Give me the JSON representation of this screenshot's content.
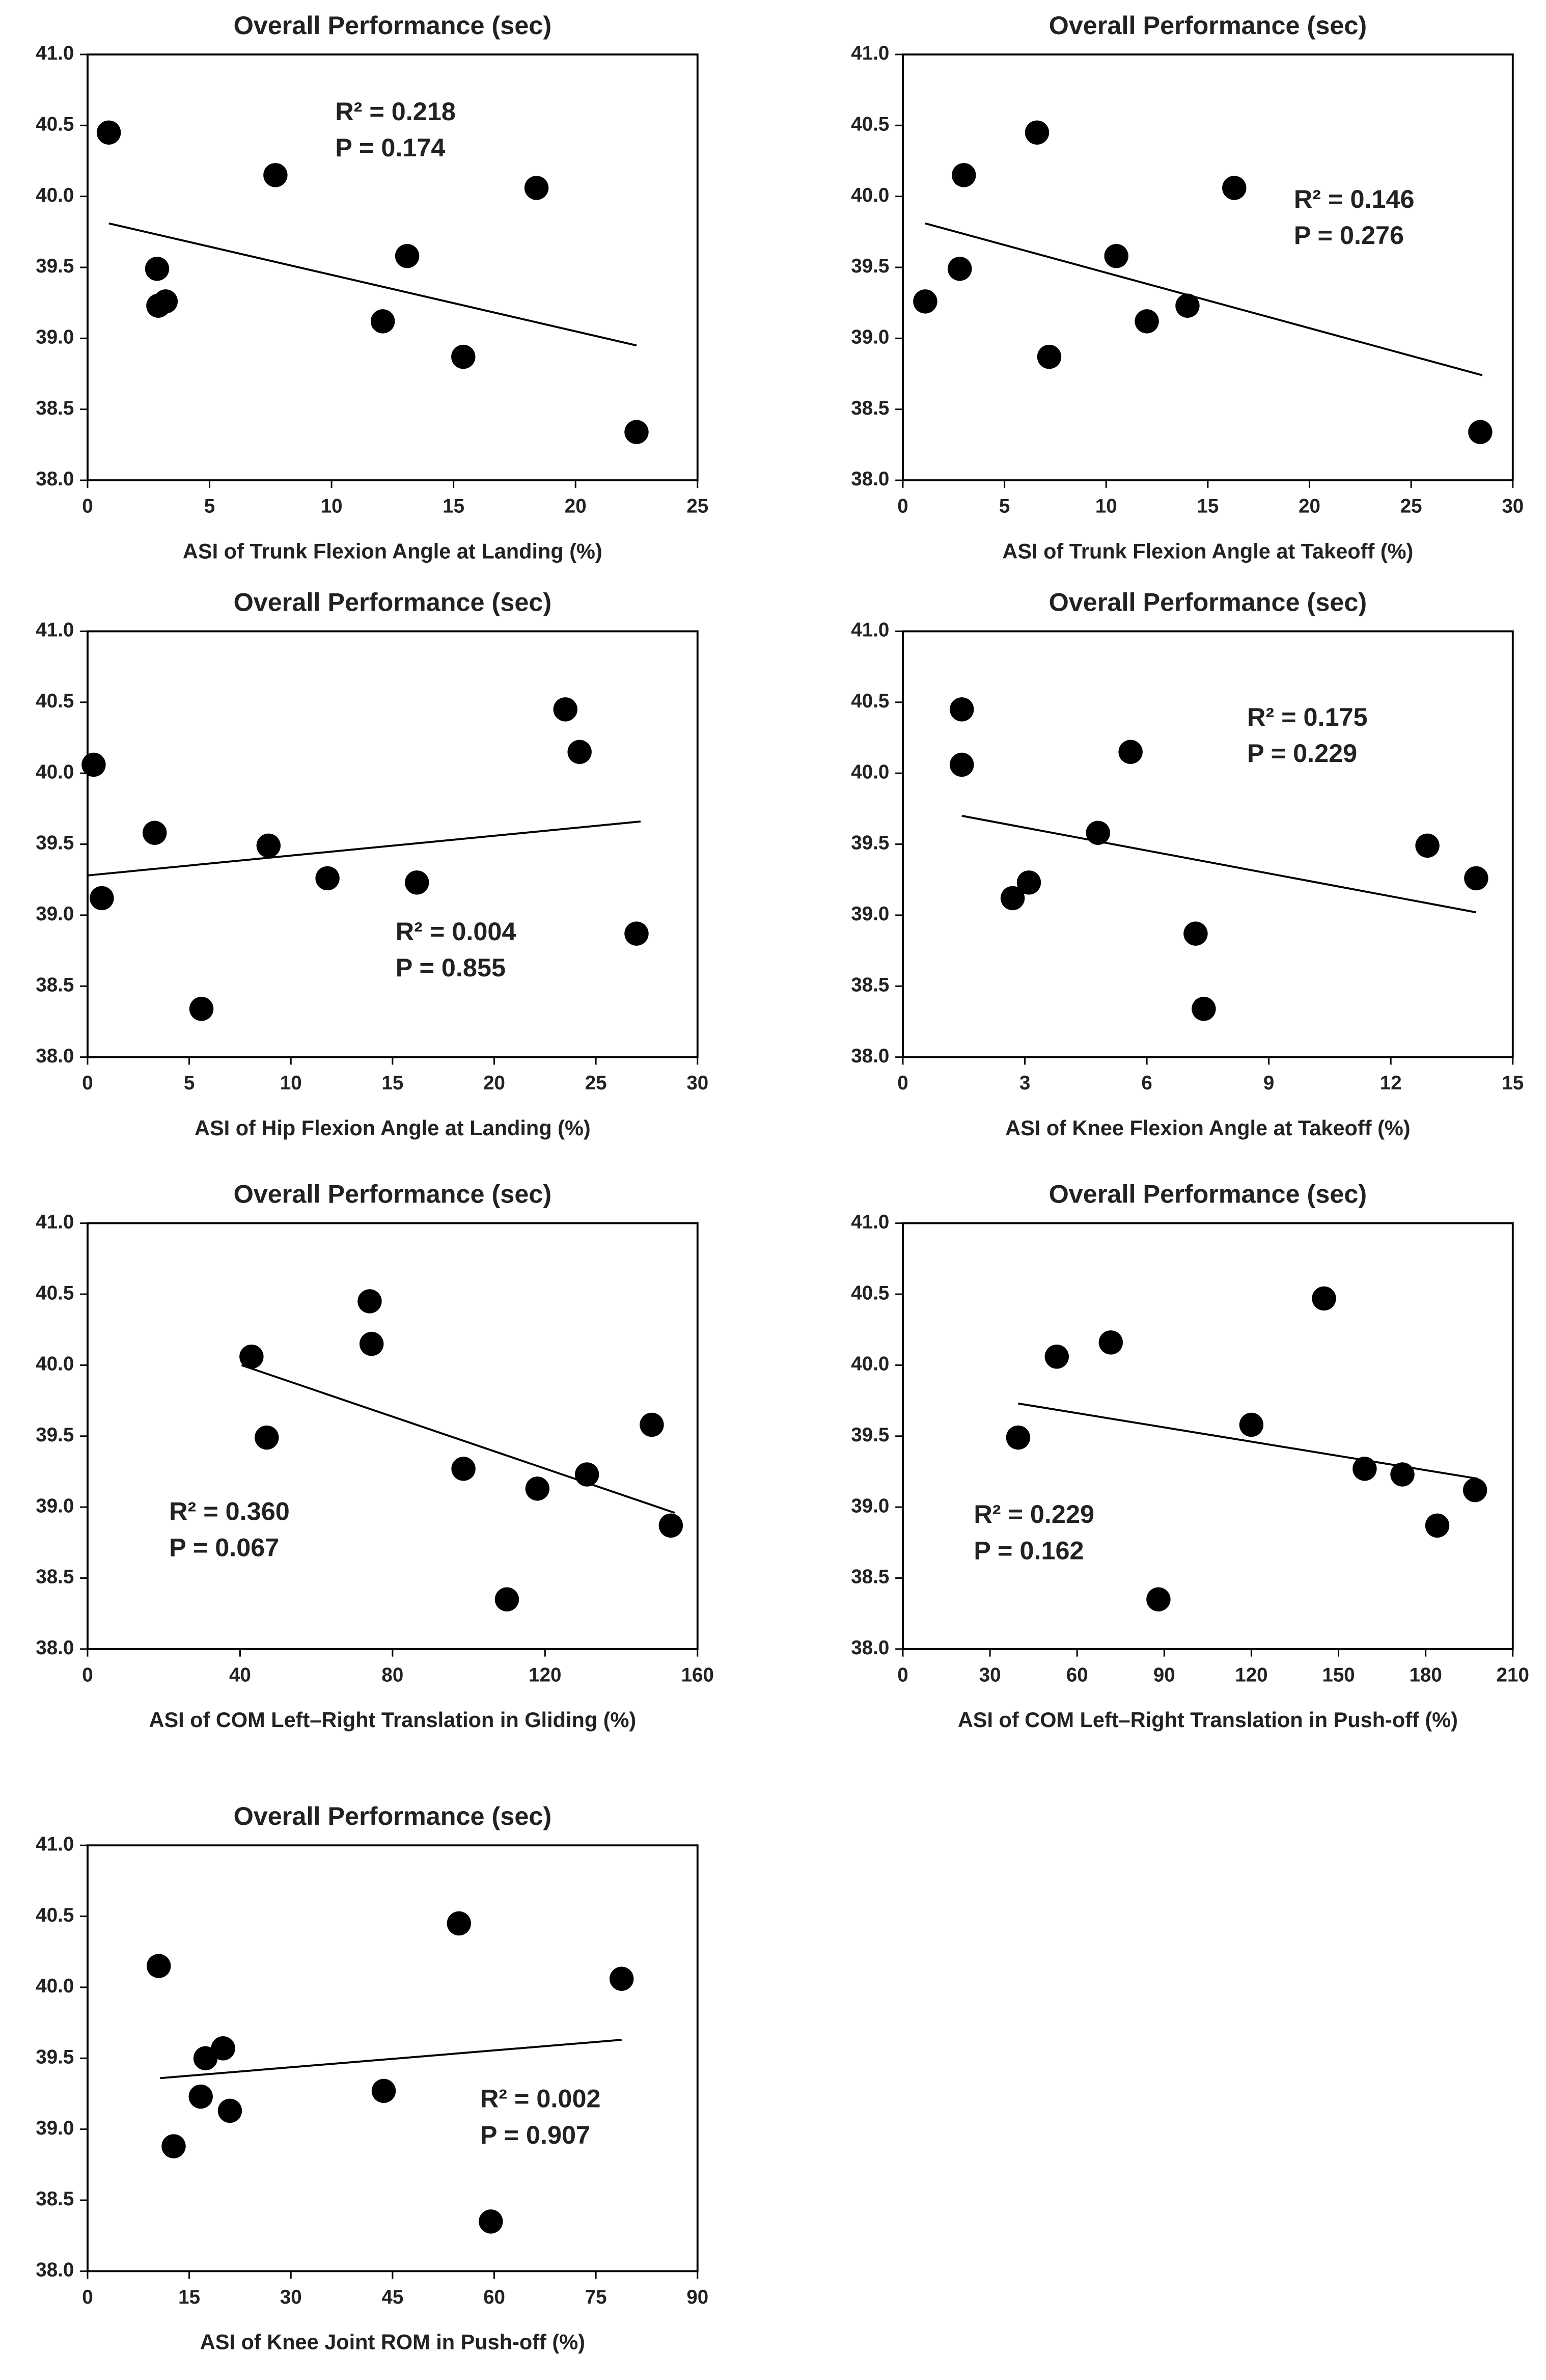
{
  "chart_data": [
    {
      "type": "scatter",
      "title": "Overall Performance (sec)",
      "x_label": "ASI of Trunk Flexion Angle at Landing (%)",
      "x": [
        0.87,
        7.7,
        18.4,
        2.85,
        13.1,
        3.2,
        2.9,
        12.1,
        15.4,
        22.5
      ],
      "y": [
        40.45,
        40.15,
        40.06,
        39.49,
        39.58,
        39.26,
        39.23,
        39.12,
        38.87,
        38.34
      ],
      "color": "#000000",
      "trendline": {
        "x": [
          0.87,
          22.5
        ],
        "y": [
          39.81,
          38.95
        ]
      },
      "annotations": [
        "R² = 0.218",
        "P = 0.174"
      ],
      "xlim": [
        0,
        25
      ],
      "xticks": [
        0,
        5,
        10,
        15,
        20,
        25
      ],
      "ylim": [
        38,
        41
      ],
      "yticks": [
        {
          "value": 38,
          "label": "38.0"
        },
        38.5,
        {
          "value": 39,
          "label": "39.0"
        },
        39.5,
        {
          "value": 40,
          "label": "40.0"
        },
        40.5,
        {
          "value": 41,
          "label": "41.0"
        }
      ]
    },
    {
      "type": "scatter",
      "title": "Overall Performance (sec)",
      "x_label": "ASI of Trunk Flexion Angle at Takeoff (%)",
      "x": [
        6.6,
        3.0,
        16.3,
        2.8,
        10.5,
        1.1,
        12.0,
        14.0,
        7.2,
        28.4
      ],
      "y": [
        40.45,
        40.15,
        40.06,
        39.49,
        39.58,
        39.26,
        39.12,
        39.23,
        38.87,
        38.34
      ],
      "color": "#000000",
      "trendline": {
        "x": [
          1.1,
          28.5
        ],
        "y": [
          39.81,
          38.74
        ]
      },
      "annotations": [
        "R² = 0.146",
        "P = 0.276"
      ],
      "xlim": [
        0,
        30
      ],
      "xticks": [
        0,
        5,
        10,
        15,
        20,
        25,
        30
      ],
      "ylim": [
        38,
        41
      ],
      "yticks": [
        {
          "value": 38,
          "label": "38.0"
        },
        38.5,
        {
          "value": 39,
          "label": "39.0"
        },
        39.5,
        {
          "value": 40,
          "label": "40.0"
        },
        40.5,
        {
          "value": 41,
          "label": "41.0"
        }
      ]
    },
    {
      "type": "scatter",
      "title": "Overall Performance (sec)",
      "x_label": "ASI of Hip Flexion Angle at Landing (%)",
      "x": [
        0.3,
        0.7,
        3.3,
        8.9,
        11.8,
        16.2,
        5.6,
        23.5,
        24.2,
        27.0
      ],
      "y": [
        40.06,
        39.12,
        39.58,
        39.49,
        39.26,
        39.23,
        38.34,
        40.45,
        40.15,
        38.87
      ],
      "color": "#000000",
      "trendline": {
        "x": [
          0,
          27.2
        ],
        "y": [
          39.28,
          39.66
        ]
      },
      "annotations": [
        "R² = 0.004",
        "P = 0.855"
      ],
      "xlim": [
        0,
        30
      ],
      "xticks": [
        0,
        5,
        10,
        15,
        20,
        25,
        30
      ],
      "ylim": [
        38,
        41
      ],
      "yticks": [
        {
          "value": 38,
          "label": "38.0"
        },
        38.5,
        {
          "value": 39,
          "label": "39.0"
        },
        39.5,
        {
          "value": 40,
          "label": "40.0"
        },
        40.5,
        {
          "value": 41,
          "label": "41.0"
        }
      ]
    },
    {
      "type": "scatter",
      "title": "Overall Performance (sec)",
      "x_label": "ASI of Knee Flexion Angle at Takeoff (%)",
      "x": [
        1.45,
        1.45,
        5.6,
        4.8,
        2.7,
        3.1,
        7.2,
        7.4,
        12.9,
        14.1
      ],
      "y": [
        40.45,
        40.06,
        40.15,
        39.58,
        39.12,
        39.23,
        38.87,
        38.34,
        39.49,
        39.26
      ],
      "color": "#000000",
      "trendline": {
        "x": [
          1.45,
          14.1
        ],
        "y": [
          39.7,
          39.02
        ]
      },
      "annotations": [
        "R² = 0.175",
        "P = 0.229"
      ],
      "xlim": [
        0,
        15
      ],
      "xticks": [
        0,
        3,
        6,
        9,
        12,
        15
      ],
      "ylim": [
        38,
        41
      ],
      "yticks": [
        {
          "value": 38,
          "label": "38.0"
        },
        38.5,
        {
          "value": 39,
          "label": "39.0"
        },
        39.5,
        {
          "value": 40,
          "label": "40.0"
        },
        40.5,
        {
          "value": 41,
          "label": "41.0"
        }
      ]
    },
    {
      "type": "scatter",
      "title": "Overall Performance (sec)",
      "x_label": "ASI of COM Left–Right Translation in Gliding (%)",
      "x": [
        43,
        47,
        74,
        74.5,
        98.6,
        118,
        131,
        148,
        153,
        110
      ],
      "y": [
        40.06,
        39.49,
        40.45,
        40.15,
        39.27,
        39.13,
        39.23,
        39.58,
        38.87,
        38.35
      ],
      "color": "#000000",
      "trendline": {
        "x": [
          40.4,
          154
        ],
        "y": [
          40.0,
          38.96
        ]
      },
      "annotations": [
        "R² = 0.360",
        "P = 0.067"
      ],
      "xlim": [
        0,
        160
      ],
      "xticks": [
        0,
        40,
        80,
        120,
        160
      ],
      "ylim": [
        38,
        41
      ],
      "yticks": [
        {
          "value": 38,
          "label": "38.0"
        },
        38.5,
        {
          "value": 39,
          "label": "39.0"
        },
        39.5,
        {
          "value": 40,
          "label": "40.0"
        },
        40.5,
        {
          "value": 41,
          "label": "41.0"
        }
      ]
    },
    {
      "type": "scatter",
      "title": "Overall Performance (sec)",
      "x_label": "ASI of COM Left–Right Translation in Push-off (%)",
      "x": [
        39.7,
        53,
        71.6,
        120,
        145,
        159,
        172,
        197,
        184,
        88
      ],
      "y": [
        39.49,
        40.06,
        40.16,
        39.58,
        40.47,
        39.27,
        39.23,
        39.12,
        38.87,
        38.35
      ],
      "color": "#000000",
      "trendline": {
        "x": [
          39.7,
          198
        ],
        "y": [
          39.73,
          39.2
        ]
      },
      "annotations": [
        "R² = 0.229",
        "P = 0.162"
      ],
      "xlim": [
        0,
        210
      ],
      "xticks": [
        0,
        30,
        60,
        90,
        120,
        150,
        180,
        210
      ],
      "ylim": [
        38,
        41
      ],
      "yticks": [
        {
          "value": 38,
          "label": "38.0"
        },
        38.5,
        {
          "value": 39,
          "label": "39.0"
        },
        39.5,
        {
          "value": 40,
          "label": "40.0"
        },
        40.5,
        {
          "value": 41,
          "label": "41.0"
        }
      ]
    },
    {
      "type": "scatter",
      "title": "Overall Performance (sec)",
      "x_label": "ASI of Knee Joint ROM in Push-off (%)",
      "x": [
        10.5,
        17.4,
        20,
        16.7,
        21,
        12.7,
        43.7,
        54.8,
        78.8,
        59.5
      ],
      "y": [
        40.15,
        39.5,
        39.57,
        39.23,
        39.13,
        38.88,
        39.27,
        40.45,
        40.06,
        38.35
      ],
      "color": "#000000",
      "trendline": {
        "x": [
          10.7,
          78.8
        ],
        "y": [
          39.36,
          39.63
        ]
      },
      "annotations": [
        "R² = 0.002",
        "P = 0.907"
      ],
      "xlim": [
        0,
        90
      ],
      "xticks": [
        0,
        15,
        30,
        45,
        60,
        75,
        90
      ],
      "ylim": [
        38,
        41
      ],
      "yticks": [
        {
          "value": 38,
          "label": "38.0"
        },
        38.5,
        {
          "value": 39,
          "label": "39.0"
        },
        39.5,
        {
          "value": 40,
          "label": "40.0"
        },
        40.5,
        {
          "value": 41,
          "label": "41.0"
        }
      ]
    }
  ]
}
